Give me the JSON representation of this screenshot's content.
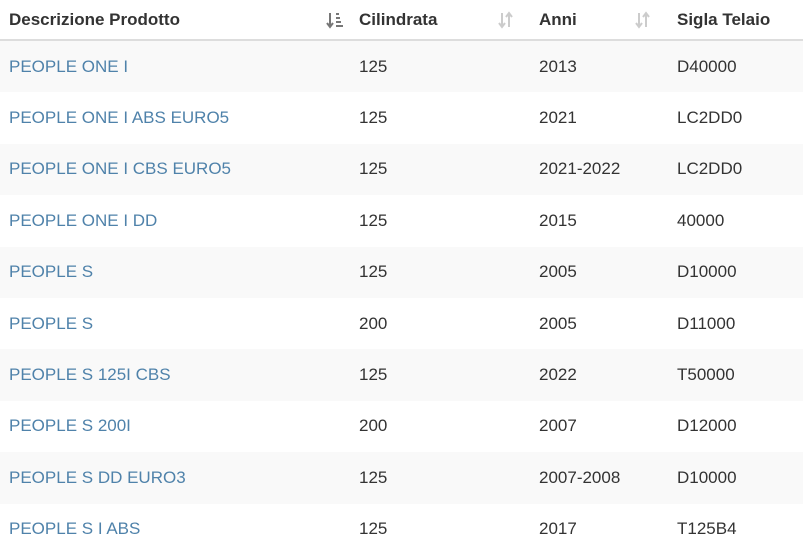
{
  "header": {
    "columns": [
      "Descrizione Prodotto",
      "Cilindrata",
      "Anni",
      "Sigla Telaio"
    ]
  },
  "table": {
    "rows": [
      [
        "PEOPLE ONE I",
        "125",
        "2013",
        "D40000"
      ],
      [
        "PEOPLE ONE I ABS EURO5",
        "125",
        "2021",
        "LC2DD0"
      ],
      [
        "PEOPLE ONE I CBS EURO5",
        "125",
        "2021-2022",
        "LC2DD0"
      ],
      [
        "PEOPLE ONE I DD",
        "125",
        "2015",
        "40000"
      ],
      [
        "PEOPLE S",
        "125",
        "2005",
        "D10000"
      ],
      [
        "PEOPLE S",
        "200",
        "2005",
        "D11000"
      ],
      [
        "PEOPLE S 125I CBS",
        "125",
        "2022",
        "T50000"
      ],
      [
        "PEOPLE S 200I",
        "200",
        "2007",
        "D12000"
      ],
      [
        "PEOPLE S DD EURO3",
        "125",
        "2007-2008",
        "D10000"
      ],
      [
        "PEOPLE S I ABS",
        "125",
        "2017",
        "T125B4"
      ]
    ]
  }
}
